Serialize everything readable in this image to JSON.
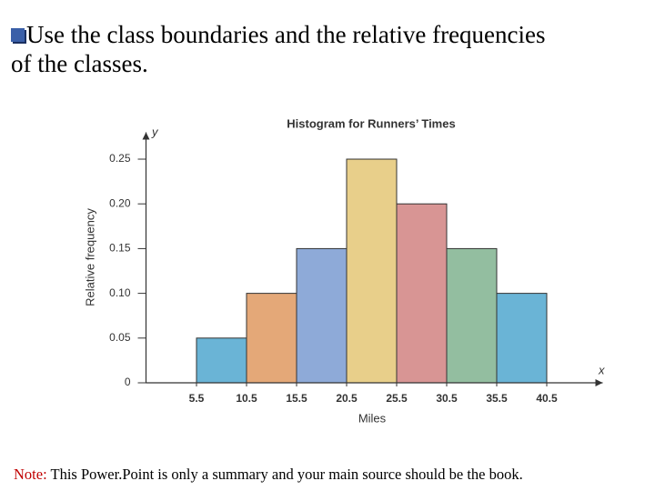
{
  "slide": {
    "heading": "Use the class boundaries and the relative frequencies of the classes.",
    "note_label": "Note:",
    "note_text": "This Power.Point is only a summary and your main source should be the book."
  },
  "chart_data": {
    "type": "histogram",
    "title": "Histogram for Runners’ Times",
    "x_label": "Miles",
    "y_label": "Relative frequency",
    "x_axis_symbol": "x",
    "y_axis_symbol": "y",
    "bins": [
      5.5,
      10.5,
      15.5,
      20.5,
      25.5,
      30.5,
      35.5,
      40.5
    ],
    "values": [
      0.05,
      0.1,
      0.15,
      0.25,
      0.2,
      0.15,
      0.1
    ],
    "colors": [
      "#6ab4d6",
      "#e4a878",
      "#8eaad8",
      "#e8cf8a",
      "#d89594",
      "#93bea0",
      "#6ab4d6"
    ],
    "xlim": [
      0,
      45
    ],
    "ylim": [
      0,
      0.28
    ],
    "xticks": [
      5.5,
      10.5,
      15.5,
      20.5,
      25.5,
      30.5,
      35.5,
      40.5
    ],
    "yticks": [
      0,
      0.05,
      {
        "value": 0.1,
        "label": "0.10"
      },
      0.15,
      {
        "value": 0.2,
        "label": "0.20"
      },
      0.25
    ]
  }
}
